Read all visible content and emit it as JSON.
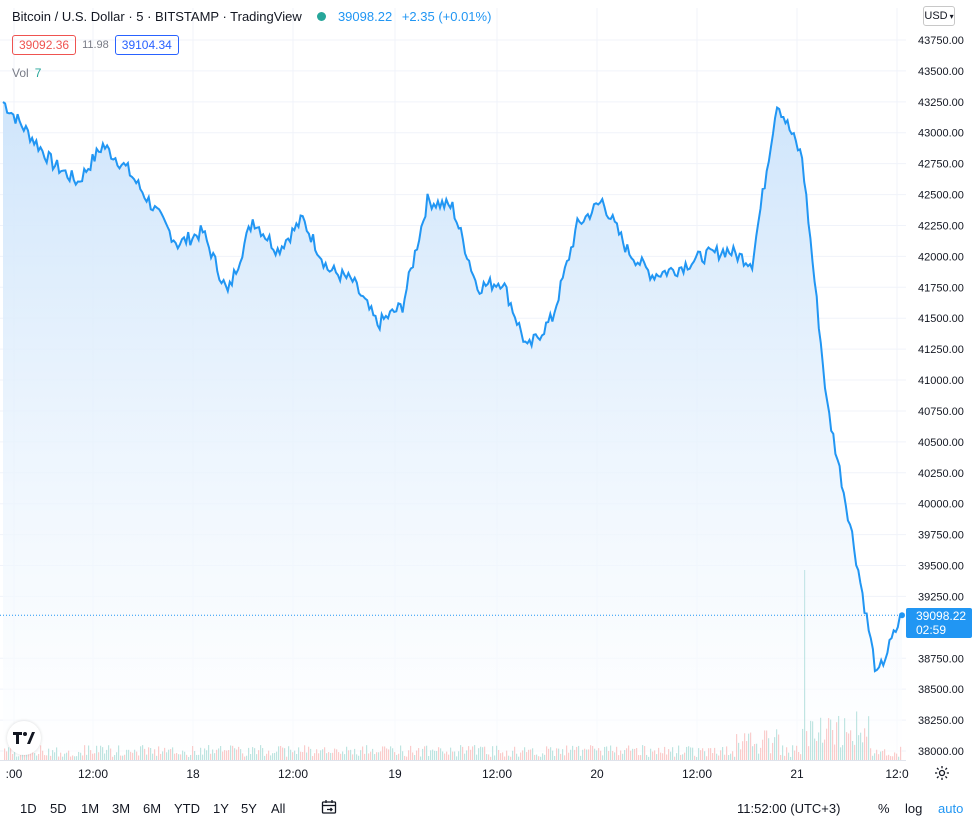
{
  "header": {
    "title": "Bitcoin / U.S. Dollar · 5 · BITSTAMP · TradingView",
    "last_price": "39098.22",
    "change": "+2.35 (+0.01%)",
    "bid": "39092.36",
    "spread": "11.98",
    "ask": "39104.34",
    "vol_label": "Vol",
    "vol_value": "7",
    "currency": "USD"
  },
  "price_tag": {
    "price": "39098.22",
    "countdown": "02:59"
  },
  "bottom_bar": {
    "ranges": [
      "1D",
      "5D",
      "1M",
      "3M",
      "6M",
      "YTD",
      "1Y",
      "5Y",
      "All"
    ],
    "time": "11:52:00 (UTC+3)",
    "percent_label": "%",
    "log_label": "log",
    "auto_label": "auto"
  },
  "colors": {
    "line": "#2196f3",
    "area_top": "#cfe5fb",
    "grid": "#f0f3fa",
    "volume_up": "#26a69a",
    "volume_down": "#ef5350"
  },
  "chart_data": {
    "type": "area",
    "title": "Bitcoin / U.S. Dollar · 5 · BITSTAMP",
    "xlabel": "",
    "ylabel": "",
    "ylim": [
      37950,
      43800
    ],
    "grid": true,
    "x_ticks": [
      ":00",
      "12:00",
      "18",
      "12:00",
      "19",
      "12:00",
      "20",
      "12:00",
      "21",
      "12:0"
    ],
    "y_ticks": [
      "43750.00",
      "43500.00",
      "43250.00",
      "43000.00",
      "42750.00",
      "42500.00",
      "42250.00",
      "42000.00",
      "41750.00",
      "41500.00",
      "41250.00",
      "41000.00",
      "40750.00",
      "40500.00",
      "40250.00",
      "40000.00",
      "39750.00",
      "39500.00",
      "39250.00",
      "38750.00",
      "38500.00",
      "38250.00",
      "38000.00"
    ],
    "current_price": 39098.22,
    "series": [
      {
        "x": [
          "17 00:00",
          "17 03:00",
          "17 06:00",
          "17 09:00",
          "17 12:00",
          "17 15:00",
          "17 18:00",
          "17 21:00",
          "18 00:00",
          "18 03:00",
          "18 06:00",
          "18 09:00",
          "18 12:00",
          "18 15:00",
          "18 18:00",
          "18 21:00",
          "19 00:00",
          "19 03:00",
          "19 06:00",
          "19 09:00",
          "19 12:00",
          "19 15:00",
          "19 18:00",
          "19 21:00",
          "20 00:00",
          "20 03:00",
          "20 06:00",
          "20 09:00",
          "20 12:00",
          "20 15:00",
          "20 18:00",
          "20 21:00",
          "21 00:00",
          "21 03:00",
          "21 06:00",
          "21 09:00",
          "21 11:52"
        ],
        "values": [
          43250,
          43000,
          42750,
          42600,
          42900,
          42700,
          42400,
          42100,
          42200,
          41700,
          42300,
          42050,
          42300,
          41900,
          41800,
          41450,
          41600,
          42450,
          42400,
          41750,
          41800,
          41250,
          41500,
          42250,
          42450,
          42050,
          41850,
          41900,
          42000,
          42050,
          41950,
          43250,
          42800,
          40800,
          39750,
          38600,
          39098
        ]
      }
    ]
  }
}
